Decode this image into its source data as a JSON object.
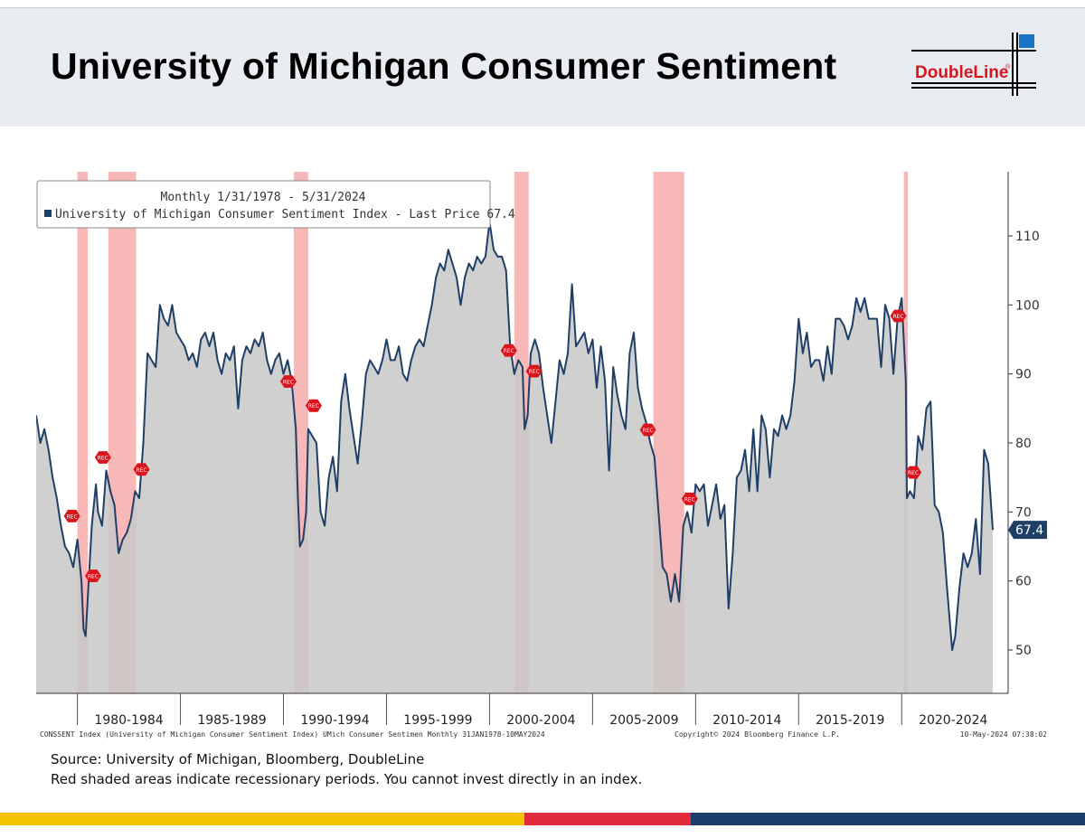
{
  "header": {
    "title": "University of Michigan Consumer Sentiment",
    "logo_text": "DoubleLine",
    "logo_reg": "®"
  },
  "colors": {
    "series": "#1f3f66",
    "area": "#c8c8c8",
    "recession": "#f5a0a0",
    "label_bg": "#1f3f66",
    "rec_marker": "#d9141c",
    "stripe_yellow": "#f5c400",
    "stripe_red": "#e0293a",
    "stripe_navy": "#1c3c6b",
    "logo_blue": "#1a73c7"
  },
  "legend": {
    "period": "Monthly 1/31/1978 - 5/31/2024",
    "series_label": "University of Michigan Consumer Sentiment Index - Last Price 67.4"
  },
  "last_value_label": "67.4",
  "rec_marker_text": "REC",
  "footer": {
    "left": "CONSSENT Index (University of Michigan Consumer Sentiment Index) UMich Consumer Sentimen  Monthly 31JAN1978-10MAY2024",
    "center": "Copyright© 2024 Bloomberg Finance L.P.",
    "right": "10-May-2024 07:38:02"
  },
  "source": {
    "line1": "Source: University of Michigan, Bloomberg, DoubleLine",
    "line2": "Red shaded areas indicate recessionary periods. You cannot invest directly in an index."
  },
  "chart_data": {
    "type": "area",
    "title": "",
    "xlabel": "",
    "ylabel": "",
    "ylim": [
      44,
      118
    ],
    "yticks": [
      50,
      60,
      70,
      80,
      90,
      100,
      110
    ],
    "x_range": [
      1978.0,
      2024.42
    ],
    "x_tick_labels": [
      "1980-1984",
      "1985-1989",
      "1990-1994",
      "1995-1999",
      "2000-2004",
      "2005-2009",
      "2010-2014",
      "2015-2019",
      "2020-2024"
    ],
    "grid": false,
    "legend_position": "top-left",
    "last_value": 67.4,
    "recessions": [
      {
        "start": 1980.0,
        "end": 1980.5
      },
      {
        "start": 1981.5,
        "end": 1982.85
      },
      {
        "start": 1990.5,
        "end": 1991.2
      },
      {
        "start": 2001.2,
        "end": 2001.9
      },
      {
        "start": 2007.95,
        "end": 2009.45
      },
      {
        "start": 2020.1,
        "end": 2020.3
      }
    ],
    "series": [
      {
        "name": "University of Michigan Consumer Sentiment Index",
        "points": [
          [
            1978.0,
            84
          ],
          [
            1978.2,
            80
          ],
          [
            1978.4,
            82
          ],
          [
            1978.6,
            79
          ],
          [
            1978.8,
            75
          ],
          [
            1979.0,
            72
          ],
          [
            1979.2,
            68
          ],
          [
            1979.4,
            65
          ],
          [
            1979.6,
            64
          ],
          [
            1979.8,
            62
          ],
          [
            1980.0,
            66
          ],
          [
            1980.2,
            60
          ],
          [
            1980.3,
            53
          ],
          [
            1980.4,
            52
          ],
          [
            1980.55,
            60
          ],
          [
            1980.7,
            68
          ],
          [
            1980.9,
            74
          ],
          [
            1981.0,
            70
          ],
          [
            1981.2,
            68
          ],
          [
            1981.4,
            76
          ],
          [
            1981.6,
            73
          ],
          [
            1981.8,
            71
          ],
          [
            1982.0,
            64
          ],
          [
            1982.2,
            66
          ],
          [
            1982.4,
            67
          ],
          [
            1982.6,
            69
          ],
          [
            1982.8,
            73
          ],
          [
            1983.0,
            72
          ],
          [
            1983.2,
            80
          ],
          [
            1983.4,
            93
          ],
          [
            1983.6,
            92
          ],
          [
            1983.8,
            91
          ],
          [
            1984.0,
            100
          ],
          [
            1984.2,
            98
          ],
          [
            1984.4,
            97
          ],
          [
            1984.6,
            100
          ],
          [
            1984.8,
            96
          ],
          [
            1985.0,
            95
          ],
          [
            1985.2,
            94
          ],
          [
            1985.4,
            92
          ],
          [
            1985.6,
            93
          ],
          [
            1985.8,
            91
          ],
          [
            1986.0,
            95
          ],
          [
            1986.2,
            96
          ],
          [
            1986.4,
            94
          ],
          [
            1986.6,
            96
          ],
          [
            1986.8,
            92
          ],
          [
            1987.0,
            90
          ],
          [
            1987.2,
            93
          ],
          [
            1987.4,
            92
          ],
          [
            1987.6,
            94
          ],
          [
            1987.8,
            85
          ],
          [
            1988.0,
            92
          ],
          [
            1988.2,
            94
          ],
          [
            1988.4,
            93
          ],
          [
            1988.6,
            95
          ],
          [
            1988.8,
            94
          ],
          [
            1989.0,
            96
          ],
          [
            1989.2,
            92
          ],
          [
            1989.4,
            90
          ],
          [
            1989.6,
            92
          ],
          [
            1989.8,
            93
          ],
          [
            1990.0,
            90
          ],
          [
            1990.2,
            92
          ],
          [
            1990.4,
            89
          ],
          [
            1990.6,
            82
          ],
          [
            1990.7,
            72
          ],
          [
            1990.8,
            65
          ],
          [
            1990.95,
            66
          ],
          [
            1991.1,
            70
          ],
          [
            1991.2,
            82
          ],
          [
            1991.4,
            81
          ],
          [
            1991.6,
            80
          ],
          [
            1991.8,
            70
          ],
          [
            1992.0,
            68
          ],
          [
            1992.2,
            75
          ],
          [
            1992.4,
            78
          ],
          [
            1992.6,
            73
          ],
          [
            1992.8,
            86
          ],
          [
            1993.0,
            90
          ],
          [
            1993.2,
            85
          ],
          [
            1993.4,
            81
          ],
          [
            1993.6,
            77
          ],
          [
            1993.8,
            83
          ],
          [
            1994.0,
            90
          ],
          [
            1994.2,
            92
          ],
          [
            1994.4,
            91
          ],
          [
            1994.6,
            90
          ],
          [
            1994.8,
            92
          ],
          [
            1995.0,
            95
          ],
          [
            1995.2,
            92
          ],
          [
            1995.4,
            92
          ],
          [
            1995.6,
            94
          ],
          [
            1995.8,
            90
          ],
          [
            1996.0,
            89
          ],
          [
            1996.2,
            92
          ],
          [
            1996.4,
            94
          ],
          [
            1996.6,
            95
          ],
          [
            1996.8,
            94
          ],
          [
            1997.0,
            97
          ],
          [
            1997.2,
            100
          ],
          [
            1997.4,
            104
          ],
          [
            1997.6,
            106
          ],
          [
            1997.8,
            105
          ],
          [
            1998.0,
            108
          ],
          [
            1998.2,
            106
          ],
          [
            1998.4,
            104
          ],
          [
            1998.6,
            100
          ],
          [
            1998.8,
            104
          ],
          [
            1999.0,
            106
          ],
          [
            1999.2,
            105
          ],
          [
            1999.4,
            107
          ],
          [
            1999.6,
            106
          ],
          [
            1999.8,
            107
          ],
          [
            2000.0,
            112
          ],
          [
            2000.2,
            108
          ],
          [
            2000.4,
            107
          ],
          [
            2000.6,
            107
          ],
          [
            2000.8,
            105
          ],
          [
            2001.0,
            94
          ],
          [
            2001.2,
            90
          ],
          [
            2001.4,
            92
          ],
          [
            2001.6,
            91
          ],
          [
            2001.7,
            82
          ],
          [
            2001.85,
            84
          ],
          [
            2002.0,
            93
          ],
          [
            2002.2,
            95
          ],
          [
            2002.4,
            93
          ],
          [
            2002.6,
            88
          ],
          [
            2002.8,
            84
          ],
          [
            2003.0,
            80
          ],
          [
            2003.2,
            86
          ],
          [
            2003.4,
            92
          ],
          [
            2003.6,
            90
          ],
          [
            2003.8,
            93
          ],
          [
            2004.0,
            103
          ],
          [
            2004.2,
            94
          ],
          [
            2004.4,
            95
          ],
          [
            2004.6,
            96
          ],
          [
            2004.8,
            93
          ],
          [
            2005.0,
            95
          ],
          [
            2005.2,
            88
          ],
          [
            2005.4,
            94
          ],
          [
            2005.6,
            89
          ],
          [
            2005.8,
            76
          ],
          [
            2006.0,
            91
          ],
          [
            2006.2,
            87
          ],
          [
            2006.4,
            84
          ],
          [
            2006.6,
            82
          ],
          [
            2006.8,
            93
          ],
          [
            2007.0,
            96
          ],
          [
            2007.2,
            88
          ],
          [
            2007.4,
            85
          ],
          [
            2007.6,
            83
          ],
          [
            2007.8,
            80
          ],
          [
            2008.0,
            78
          ],
          [
            2008.2,
            70
          ],
          [
            2008.4,
            62
          ],
          [
            2008.6,
            61
          ],
          [
            2008.8,
            57
          ],
          [
            2009.0,
            61
          ],
          [
            2009.2,
            57
          ],
          [
            2009.4,
            68
          ],
          [
            2009.6,
            70
          ],
          [
            2009.8,
            67
          ],
          [
            2010.0,
            74
          ],
          [
            2010.2,
            73
          ],
          [
            2010.4,
            74
          ],
          [
            2010.6,
            68
          ],
          [
            2010.8,
            71
          ],
          [
            2011.0,
            74
          ],
          [
            2011.2,
            69
          ],
          [
            2011.4,
            71
          ],
          [
            2011.6,
            56
          ],
          [
            2011.8,
            64
          ],
          [
            2012.0,
            75
          ],
          [
            2012.2,
            76
          ],
          [
            2012.4,
            79
          ],
          [
            2012.6,
            73
          ],
          [
            2012.8,
            82
          ],
          [
            2013.0,
            73
          ],
          [
            2013.2,
            84
          ],
          [
            2013.4,
            82
          ],
          [
            2013.6,
            75
          ],
          [
            2013.8,
            82
          ],
          [
            2014.0,
            81
          ],
          [
            2014.2,
            84
          ],
          [
            2014.4,
            82
          ],
          [
            2014.6,
            84
          ],
          [
            2014.8,
            89
          ],
          [
            2015.0,
            98
          ],
          [
            2015.2,
            93
          ],
          [
            2015.4,
            96
          ],
          [
            2015.6,
            91
          ],
          [
            2015.8,
            92
          ],
          [
            2016.0,
            92
          ],
          [
            2016.2,
            89
          ],
          [
            2016.4,
            94
          ],
          [
            2016.6,
            90
          ],
          [
            2016.8,
            98
          ],
          [
            2017.0,
            98
          ],
          [
            2017.2,
            97
          ],
          [
            2017.4,
            95
          ],
          [
            2017.6,
            97
          ],
          [
            2017.8,
            101
          ],
          [
            2018.0,
            99
          ],
          [
            2018.2,
            101
          ],
          [
            2018.4,
            98
          ],
          [
            2018.6,
            98
          ],
          [
            2018.8,
            98
          ],
          [
            2019.0,
            91
          ],
          [
            2019.2,
            100
          ],
          [
            2019.4,
            98
          ],
          [
            2019.6,
            90
          ],
          [
            2019.8,
            98
          ],
          [
            2020.0,
            101
          ],
          [
            2020.2,
            89
          ],
          [
            2020.25,
            72
          ],
          [
            2020.4,
            73
          ],
          [
            2020.6,
            72
          ],
          [
            2020.8,
            81
          ],
          [
            2021.0,
            79
          ],
          [
            2021.2,
            85
          ],
          [
            2021.4,
            86
          ],
          [
            2021.6,
            71
          ],
          [
            2021.8,
            70
          ],
          [
            2022.0,
            67
          ],
          [
            2022.2,
            59
          ],
          [
            2022.45,
            50
          ],
          [
            2022.6,
            52
          ],
          [
            2022.8,
            59
          ],
          [
            2023.0,
            64
          ],
          [
            2023.2,
            62
          ],
          [
            2023.4,
            64
          ],
          [
            2023.6,
            69
          ],
          [
            2023.8,
            61
          ],
          [
            2024.0,
            79
          ],
          [
            2024.2,
            77
          ],
          [
            2024.42,
            67.4
          ]
        ]
      }
    ]
  }
}
